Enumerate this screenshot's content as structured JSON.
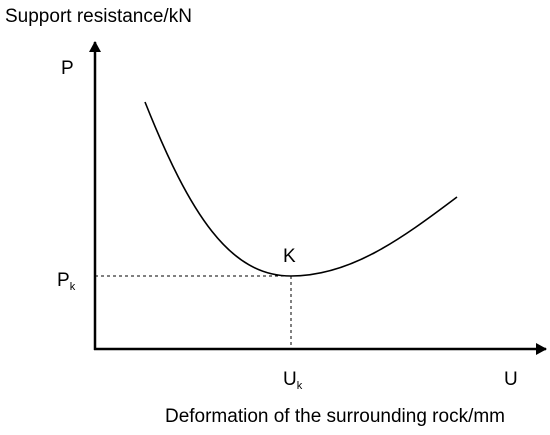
{
  "y_axis": {
    "title": "Support resistance/kN",
    "symbol": "P"
  },
  "x_axis": {
    "title": "Deformation of the surrounding rock/mm",
    "symbol": "U"
  },
  "point": {
    "label": "K",
    "p_label": {
      "main": "P",
      "sub": "k"
    },
    "u_label": {
      "main": "U",
      "sub": "k"
    }
  }
}
